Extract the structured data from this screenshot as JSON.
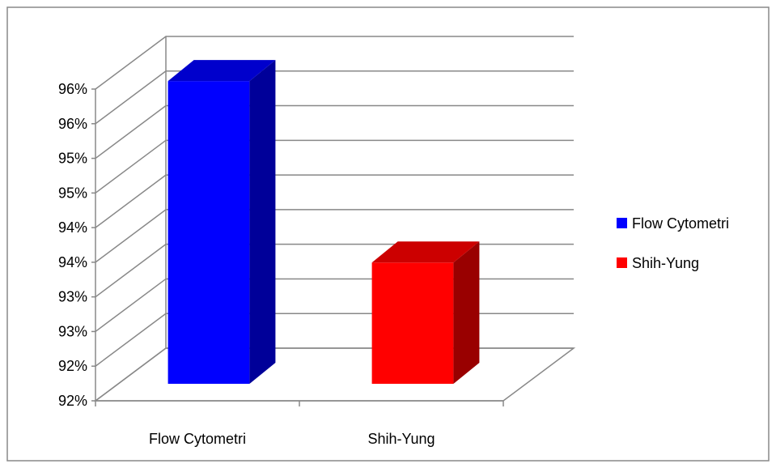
{
  "chart_data": {
    "type": "bar",
    "title": "",
    "xlabel": "",
    "ylabel": "",
    "categories": [
      "Flow Cytometri",
      "Shih-Yung"
    ],
    "series": [
      {
        "name": "Flow Cytometri",
        "color": "#0000ff",
        "values": [
          95.87,
          null
        ]
      },
      {
        "name": "Shih-Yung",
        "color": "#ff0000",
        "values": [
          null,
          93.25
        ]
      }
    ],
    "ylim": [
      91.5,
      96
    ],
    "y_ticks": [
      91.5,
      92.0,
      92.5,
      93.0,
      93.5,
      94.0,
      94.5,
      95.0,
      95.5,
      96.0
    ],
    "y_tick_labels": [
      "92%",
      "92%",
      "93%",
      "93%",
      "94%",
      "94%",
      "95%",
      "95%",
      "96%",
      "96%"
    ],
    "grid": true,
    "three_d": true,
    "legend": {
      "position": "right",
      "items": [
        "Flow Cytometri",
        "Shih-Yung"
      ]
    },
    "colors": {
      "chart_border": "#888888",
      "gridline": "#888888",
      "axis": "#888888",
      "series_1_front": "#0000ff",
      "series_1_side": "#000099",
      "series_1_top": "#0000cc",
      "series_2_front": "#ff0000",
      "series_2_side": "#990000",
      "series_2_top": "#cc0000"
    }
  }
}
